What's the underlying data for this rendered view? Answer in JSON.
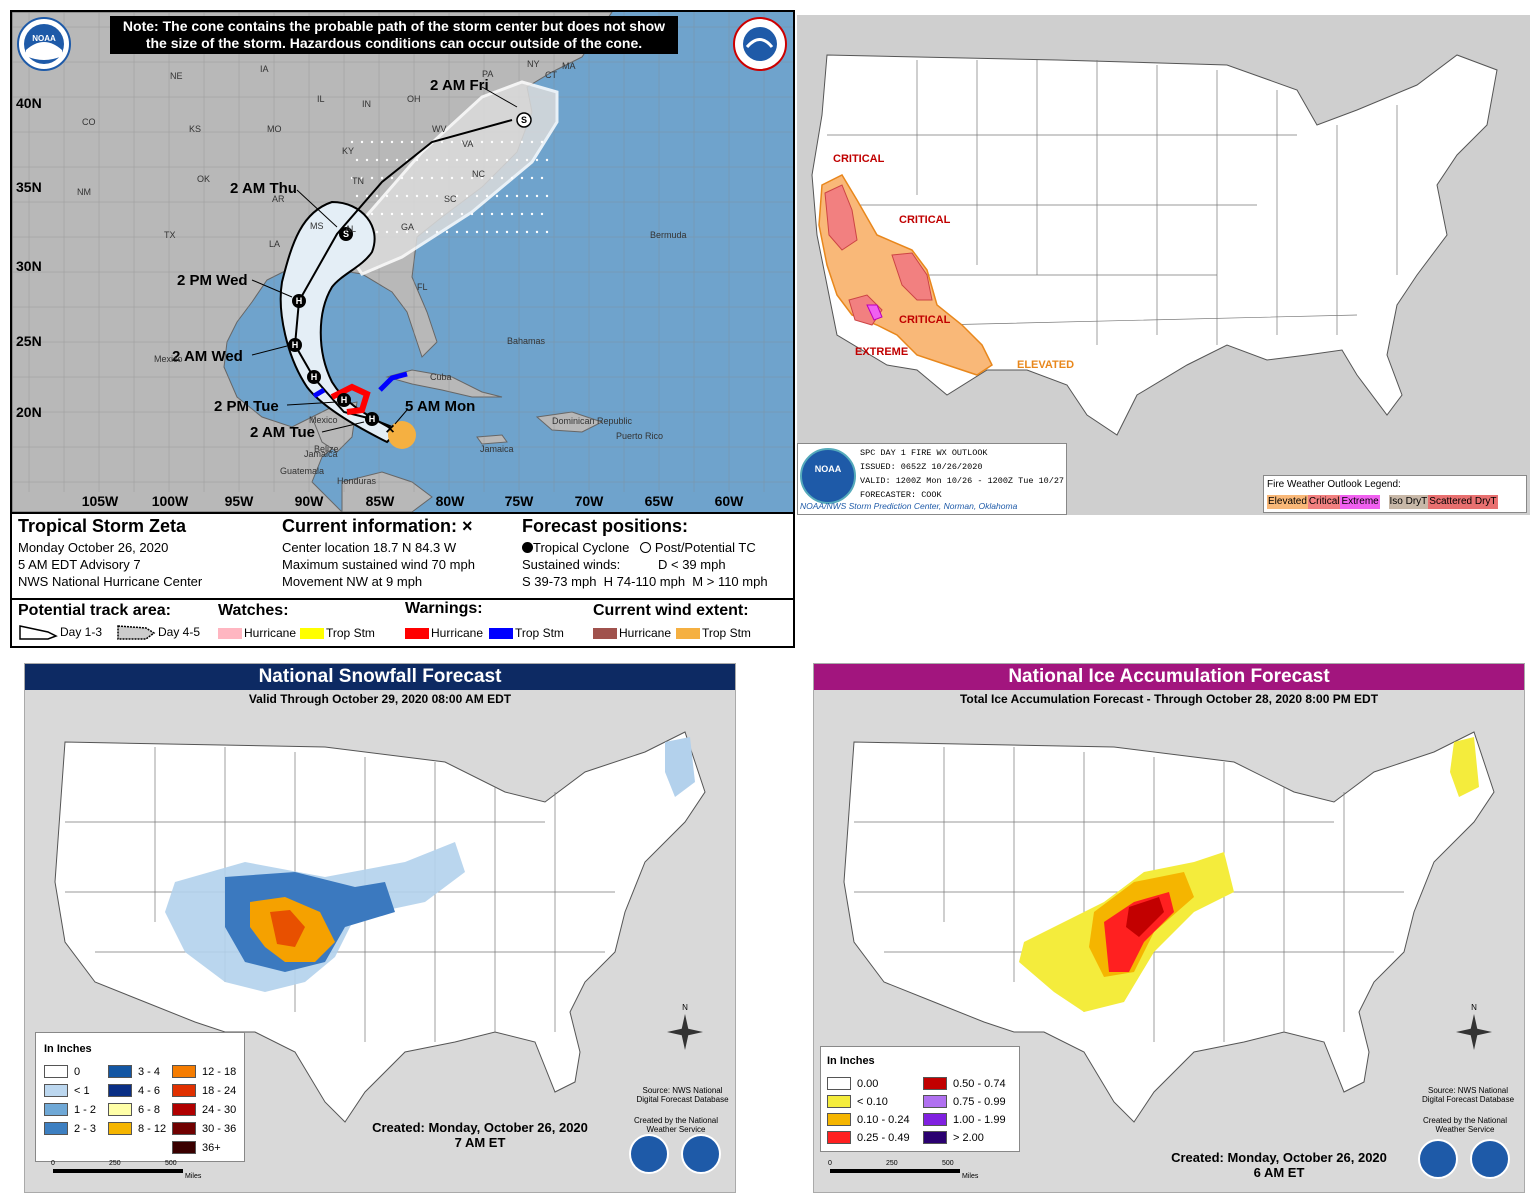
{
  "hurricane": {
    "note": "Note: The cone contains the probable path of the storm center but does not show the size of the storm. Hazardous conditions can occur outside of the cone.",
    "logo_left": "NOAA",
    "logo_right": "NATIONAL WEATHER SERVICE",
    "lat_labels": [
      "40N",
      "35N",
      "30N",
      "25N",
      "20N"
    ],
    "lon_labels": [
      "105W",
      "100W",
      "95W",
      "90W",
      "85W",
      "80W",
      "75W",
      "70W",
      "65W",
      "60W"
    ],
    "state_labels": [
      "NE",
      "IA",
      "IL",
      "IN",
      "OH",
      "PA",
      "NY",
      "MA",
      "CT",
      "CO",
      "KS",
      "MO",
      "KY",
      "WV",
      "VA",
      "OK",
      "AR",
      "TN",
      "NC",
      "NM",
      "TX",
      "MS",
      "AL",
      "GA",
      "SC",
      "LA",
      "FL"
    ],
    "place_labels": [
      "Bermuda",
      "Bahamas",
      "Cuba",
      "Mexico",
      "Belize",
      "Jamaica",
      "Honduras",
      "Guatemala",
      "Dominican Republic",
      "Puerto Rico"
    ],
    "forecast_times": [
      "2 AM Fri",
      "2 AM Thu",
      "2 PM Wed",
      "2 AM Wed",
      "2 PM Tue",
      "2 AM Tue",
      "5 AM Mon"
    ],
    "storm_name": "Tropical Storm Zeta",
    "date": "Monday October 26, 2020",
    "advisory": "5 AM EDT Advisory 7",
    "center": "NWS National Hurricane Center",
    "current_title": "Current information:",
    "current_lines": [
      "Center location 18.7 N 84.3 W",
      "Maximum sustained wind 70 mph",
      "Movement NW at 9 mph"
    ],
    "forecast_title": "Forecast positions:",
    "forecast_tc": "Tropical Cyclone",
    "forecast_ptc": "Post/Potential TC",
    "sustained_label": "Sustained winds:",
    "d_label": "D < 39 mph",
    "s_h_m_line": "S 39-73 mph  H 74-110 mph  M > 110 mph",
    "legend": {
      "track_title": "Potential track area:",
      "day13": "Day 1-3",
      "day45": "Day 4-5",
      "watches_title": "Watches:",
      "watch_hurricane": "Hurricane",
      "watch_trop": "Trop Stm",
      "warnings_title": "Warnings:",
      "warn_hurricane": "Hurricane",
      "warn_trop": "Trop Stm",
      "wind_title": "Current wind extent:",
      "wind_hurricane": "Hurricane",
      "wind_trop": "Trop Stm"
    }
  },
  "fire": {
    "labels": [
      "CRITICAL",
      "CRITICAL",
      "CRITICAL",
      "EXTREME",
      "ELEVATED"
    ],
    "box_lines": [
      "SPC DAY 1 FIRE WX OUTLOOK",
      "ISSUED: 0652Z 10/26/2020",
      "VALID: 1200Z Mon 10/26 - 1200Z Tue 10/27",
      "FORECASTER: COOK"
    ],
    "box_footer": "NOAA/NWS Storm Prediction Center, Norman, Oklahoma",
    "logo": "NOAA",
    "legend_title": "Fire Weather Outlook Legend:",
    "legend_items": [
      "Elevated",
      "Critical",
      "Extreme",
      "Iso DryT",
      "Scattered DryT"
    ]
  },
  "snow": {
    "title": "National Snowfall Forecast",
    "subtitle": "Valid Through October 29, 2020 08:00 AM EDT",
    "legend_title": "In Inches",
    "legend_items": [
      "0",
      "< 1",
      "1 - 2",
      "2 - 3",
      "3 - 4",
      "4 - 6",
      "6 - 8",
      "8 - 12",
      "12 - 18",
      "18 - 24",
      "24 - 30",
      "30 - 36",
      "36+"
    ],
    "source": "Source: NWS National Digital Forecast Database",
    "created_by": "Created by the National Weather Service",
    "created": "Created: Monday, October 26, 2020",
    "time": "7 AM ET",
    "scale": [
      "0",
      "250",
      "500"
    ],
    "scale_unit": "Miles",
    "compass": "N"
  },
  "ice": {
    "title": "National Ice Accumulation Forecast",
    "subtitle": "Total Ice Accumulation Forecast - Through October 28, 2020 8:00 PM EDT",
    "legend_title": "In Inches",
    "legend_items": [
      "0.00",
      "< 0.10",
      "0.10 - 0.24",
      "0.25 - 0.49",
      "0.50 - 0.74",
      "0.75 - 0.99",
      "1.00 - 1.99",
      "> 2.00"
    ],
    "source": "Source: NWS National Digital Forecast Database",
    "created_by": "Created by the National Weather Service",
    "created": "Created: Monday, October 26, 2020",
    "time": "6 AM ET",
    "scale": [
      "0",
      "250",
      "500"
    ],
    "scale_unit": "Miles",
    "compass": "N"
  },
  "colors": {
    "ocean": "#6fa3cc",
    "land": "#b8b8b8",
    "cone_day13": "#e4eef6",
    "warn_hurricane": "#ff0000",
    "warn_trop": "#0000ff",
    "watch_hurricane": "#ffb6c1",
    "watch_trop": "#ffff00",
    "wind_hurricane": "#a0524d",
    "wind_trop": "#f5b041",
    "fire_elevated": "#f9b878",
    "fire_critical": "#f28080",
    "fire_extreme": "#f060f0",
    "snow_header": "#0d2a63",
    "ice_header": "#a2157e"
  }
}
